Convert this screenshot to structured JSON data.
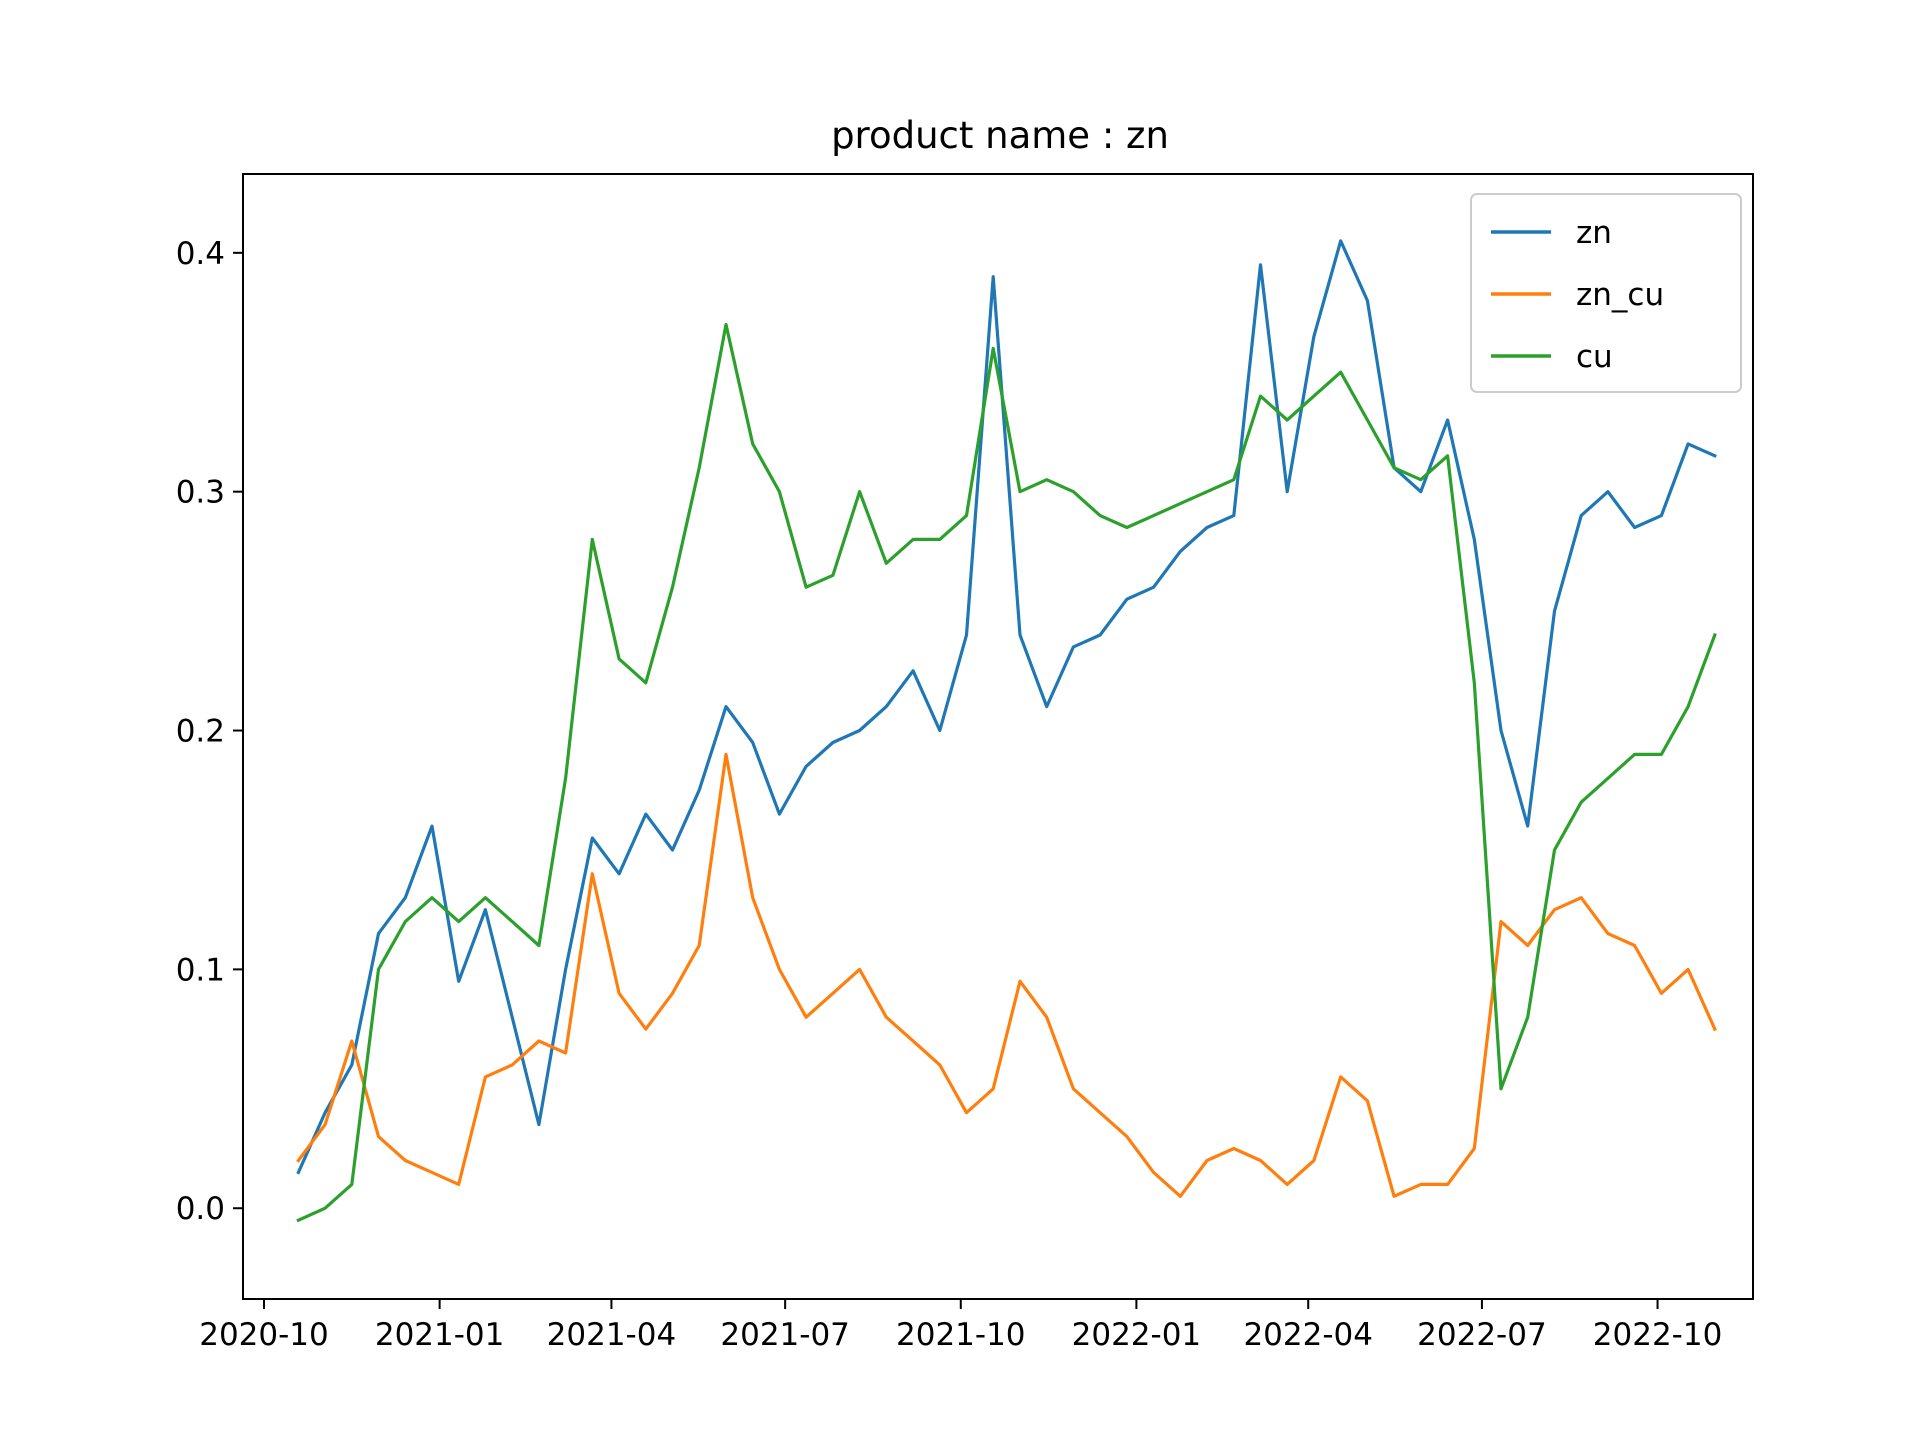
{
  "chart_data": {
    "type": "line",
    "title": "product name :    zn",
    "xlabel": "",
    "ylabel": "",
    "xlim": [
      "2020-09-20",
      "2022-11-20"
    ],
    "ylim": [
      -0.038,
      0.433
    ],
    "x_ticks": [
      "2020-10",
      "2021-01",
      "2021-04",
      "2021-07",
      "2021-10",
      "2022-01",
      "2022-04",
      "2022-07",
      "2022-10"
    ],
    "y_ticks": [
      "0.0",
      "0.1",
      "0.2",
      "0.3",
      "0.4"
    ],
    "grid": false,
    "legend_position": "upper right",
    "x": [
      "2020-10-19",
      "2020-11-02",
      "2020-11-16",
      "2020-11-30",
      "2020-12-14",
      "2020-12-28",
      "2021-01-11",
      "2021-01-25",
      "2021-02-08",
      "2021-02-22",
      "2021-03-08",
      "2021-03-22",
      "2021-04-05",
      "2021-04-19",
      "2021-05-03",
      "2021-05-17",
      "2021-05-31",
      "2021-06-14",
      "2021-06-28",
      "2021-07-12",
      "2021-07-26",
      "2021-08-09",
      "2021-08-23",
      "2021-09-06",
      "2021-09-20",
      "2021-10-04",
      "2021-10-18",
      "2021-11-01",
      "2021-11-15",
      "2021-11-29",
      "2021-12-13",
      "2021-12-27",
      "2022-01-10",
      "2022-01-24",
      "2022-02-07",
      "2022-02-21",
      "2022-03-07",
      "2022-03-21",
      "2022-04-04",
      "2022-04-18",
      "2022-05-02",
      "2022-05-16",
      "2022-05-30",
      "2022-06-13",
      "2022-06-27",
      "2022-07-11",
      "2022-07-25",
      "2022-08-08",
      "2022-08-22",
      "2022-09-05",
      "2022-09-19",
      "2022-10-03",
      "2022-10-17",
      "2022-10-31"
    ],
    "series": [
      {
        "name": "zn",
        "color": "#1f77b4",
        "values": [
          0.015,
          0.04,
          0.06,
          0.115,
          0.13,
          0.16,
          0.095,
          0.125,
          0.08,
          0.035,
          0.1,
          0.155,
          0.14,
          0.165,
          0.15,
          0.175,
          0.21,
          0.195,
          0.165,
          0.185,
          0.195,
          0.2,
          0.21,
          0.225,
          0.2,
          0.24,
          0.39,
          0.24,
          0.21,
          0.235,
          0.24,
          0.255,
          0.26,
          0.275,
          0.285,
          0.29,
          0.395,
          0.3,
          0.365,
          0.405,
          0.38,
          0.31,
          0.3,
          0.33,
          0.28,
          0.2,
          0.16,
          0.25,
          0.29,
          0.3,
          0.285,
          0.29,
          0.32,
          0.315
        ]
      },
      {
        "name": "zn_cu",
        "color": "#ff7f0e",
        "values": [
          0.02,
          0.035,
          0.07,
          0.03,
          0.02,
          0.015,
          0.01,
          0.055,
          0.06,
          0.07,
          0.065,
          0.14,
          0.09,
          0.075,
          0.09,
          0.11,
          0.19,
          0.13,
          0.1,
          0.08,
          0.09,
          0.1,
          0.08,
          0.07,
          0.06,
          0.04,
          0.05,
          0.095,
          0.08,
          0.05,
          0.04,
          0.03,
          0.015,
          0.005,
          0.02,
          0.025,
          0.02,
          0.01,
          0.02,
          0.055,
          0.045,
          0.005,
          0.01,
          0.01,
          0.025,
          0.12,
          0.11,
          0.125,
          0.13,
          0.115,
          0.11,
          0.09,
          0.1,
          0.075
        ]
      },
      {
        "name": "cu",
        "color": "#2ca02c",
        "values": [
          -0.005,
          0.0,
          0.01,
          0.1,
          0.12,
          0.13,
          0.12,
          0.13,
          0.12,
          0.11,
          0.18,
          0.28,
          0.23,
          0.22,
          0.26,
          0.31,
          0.37,
          0.32,
          0.3,
          0.26,
          0.265,
          0.3,
          0.27,
          0.28,
          0.28,
          0.29,
          0.36,
          0.3,
          0.305,
          0.3,
          0.29,
          0.285,
          0.29,
          0.295,
          0.3,
          0.305,
          0.34,
          0.33,
          0.34,
          0.35,
          0.33,
          0.31,
          0.305,
          0.315,
          0.22,
          0.05,
          0.08,
          0.15,
          0.17,
          0.18,
          0.19,
          0.19,
          0.21,
          0.24
        ]
      }
    ]
  }
}
